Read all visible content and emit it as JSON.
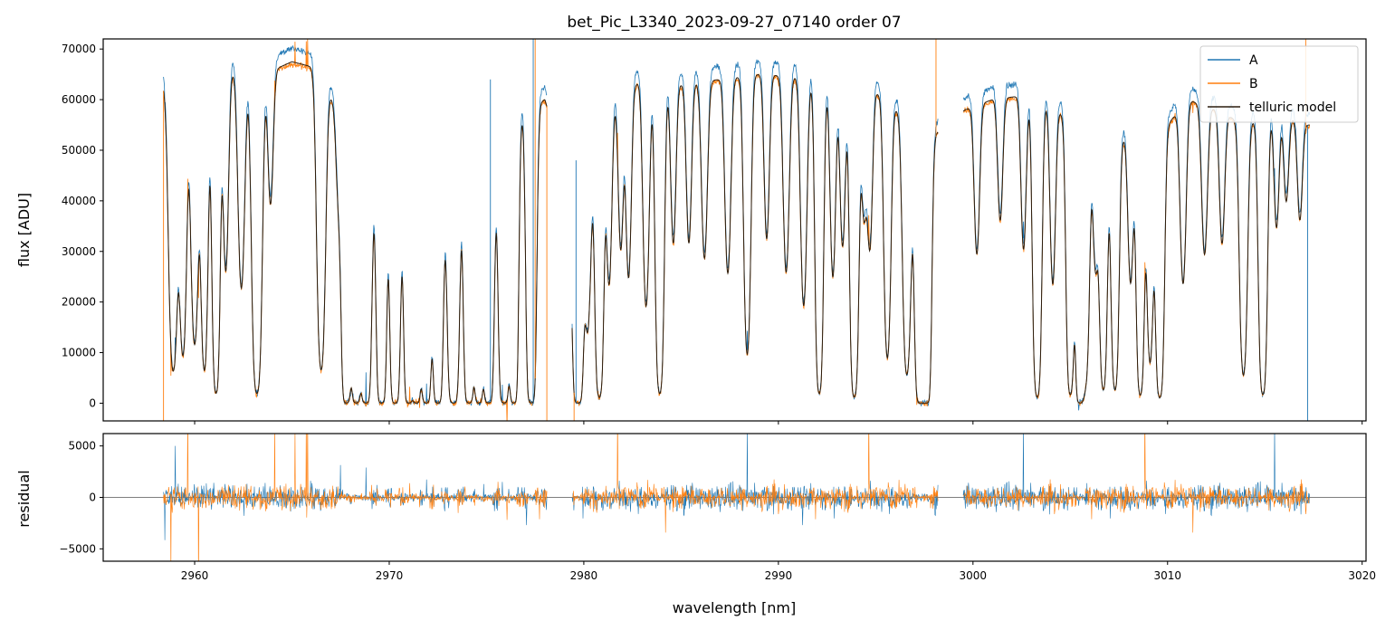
{
  "chart_data": {
    "type": "line",
    "title": "bet_Pic_L3340_2023-09-27_07140  order 07",
    "colors": {
      "A": "#1f77b4",
      "B": "#ff7f0e",
      "model": "#2b1d0e",
      "zero_line": "#555555"
    },
    "legend": {
      "position": "top-right",
      "entries": [
        {
          "key": "A",
          "label": "A"
        },
        {
          "key": "B",
          "label": "B"
        },
        {
          "key": "model",
          "label": "telluric model"
        }
      ]
    },
    "xlabel": "wavelength [nm]",
    "xlim": [
      2955.3,
      3020.2
    ],
    "xticks": [
      2960,
      2970,
      2980,
      2990,
      3000,
      3010,
      3020
    ],
    "panels": [
      {
        "name": "flux",
        "ylabel": "flux [ADU]",
        "ylim": [
          -3500,
          72000
        ],
        "yticks": [
          0,
          10000,
          20000,
          30000,
          40000,
          50000,
          60000,
          70000
        ],
        "segments": [
          [
            2958.4,
            2978.1
          ],
          [
            2979.4,
            2998.2
          ],
          [
            2999.5,
            3017.3
          ]
        ],
        "continuum": [
          [
            2958.5,
            63000
          ],
          [
            2960,
            64500
          ],
          [
            2962,
            65500
          ],
          [
            2963,
            64000
          ],
          [
            2965,
            67500
          ],
          [
            2966.5,
            66000
          ],
          [
            2968,
            50000
          ],
          [
            2970,
            45000
          ],
          [
            2972,
            33000
          ],
          [
            2973.5,
            50000
          ],
          [
            2975,
            52000
          ],
          [
            2976,
            55000
          ],
          [
            2977,
            58000
          ],
          [
            2978,
            60000
          ],
          [
            2979.5,
            40000
          ],
          [
            2981,
            58000
          ],
          [
            2983,
            64000
          ],
          [
            2985,
            63000
          ],
          [
            2987,
            64000
          ],
          [
            2989,
            65000
          ],
          [
            2991,
            64500
          ],
          [
            2993,
            62000
          ],
          [
            2995,
            61500
          ],
          [
            2997,
            55000
          ],
          [
            2998,
            53000
          ],
          [
            2999.6,
            58000
          ],
          [
            3001,
            60000
          ],
          [
            3003,
            61000
          ],
          [
            3004,
            59000
          ],
          [
            3005.5,
            54000
          ],
          [
            3007,
            52000
          ],
          [
            3008.5,
            53000
          ],
          [
            3010,
            55000
          ],
          [
            3011,
            60000
          ],
          [
            3012.5,
            58000
          ],
          [
            3014,
            55000
          ],
          [
            3015.5,
            58000
          ],
          [
            3017.2,
            55000
          ]
        ],
        "absorption_lines": [
          [
            2958.9,
            2500,
            0.9
          ],
          [
            2959.4,
            2000,
            0.85
          ],
          [
            2960.0,
            2200,
            0.82
          ],
          [
            2960.5,
            1800,
            0.9
          ],
          [
            2961.1,
            1800,
            0.97
          ],
          [
            2961.6,
            1500,
            0.6
          ],
          [
            2962.4,
            2000,
            0.65
          ],
          [
            2963.2,
            2500,
            0.97
          ],
          [
            2963.9,
            1600,
            0.4
          ],
          [
            2966.5,
            2300,
            0.9
          ],
          [
            2967.4,
            1500,
            0.3
          ],
          [
            2967.8,
            2000,
            1.0
          ],
          [
            2968.3,
            2000,
            1.0
          ],
          [
            2968.8,
            2300,
            1.0
          ],
          [
            2969.6,
            2000,
            1.0
          ],
          [
            2970.3,
            2000,
            1.0
          ],
          [
            2971.0,
            1800,
            1.0
          ],
          [
            2971.4,
            1800,
            1.0
          ],
          [
            2971.9,
            2000,
            1.0
          ],
          [
            2972.5,
            2000,
            1.0
          ],
          [
            2973.3,
            2500,
            1.0
          ],
          [
            2974.1,
            2200,
            1.0
          ],
          [
            2974.6,
            1800,
            1.0
          ],
          [
            2975.1,
            2300,
            1.0
          ],
          [
            2975.9,
            2300,
            1.0
          ],
          [
            2976.4,
            1700,
            1.0
          ],
          [
            2977.3,
            2000,
            1.0
          ],
          [
            2979.7,
            2300,
            1.0
          ],
          [
            2980.2,
            1800,
            0.7
          ],
          [
            2980.8,
            2000,
            0.98
          ],
          [
            2981.3,
            1500,
            0.6
          ],
          [
            2981.9,
            1400,
            0.5
          ],
          [
            2982.3,
            1500,
            0.6
          ],
          [
            2983.2,
            1800,
            0.7
          ],
          [
            2983.9,
            2000,
            0.97
          ],
          [
            2984.6,
            1500,
            0.5
          ],
          [
            2985.4,
            1500,
            0.5
          ],
          [
            2986.2,
            1800,
            0.55
          ],
          [
            2987.4,
            1800,
            0.6
          ],
          [
            2988.4,
            1800,
            0.85
          ],
          [
            2989.4,
            1500,
            0.5
          ],
          [
            2990.4,
            1800,
            0.6
          ],
          [
            2991.3,
            1800,
            0.7
          ],
          [
            2992.1,
            1800,
            0.97
          ],
          [
            2992.8,
            1500,
            0.6
          ],
          [
            2993.3,
            1500,
            0.5
          ],
          [
            2993.9,
            2000,
            0.98
          ],
          [
            2994.4,
            1500,
            0.4
          ],
          [
            2994.7,
            1500,
            0.5
          ],
          [
            2995.6,
            1800,
            0.85
          ],
          [
            2996.6,
            2200,
            0.9
          ],
          [
            2997.3,
            2500,
            1.0
          ],
          [
            2997.6,
            2000,
            1.0
          ],
          [
            3000.2,
            1600,
            0.5
          ],
          [
            3001.4,
            1500,
            0.4
          ],
          [
            3002.6,
            1500,
            0.5
          ],
          [
            3003.3,
            2000,
            0.98
          ],
          [
            3004.1,
            1500,
            0.6
          ],
          [
            3005.0,
            1800,
            0.97
          ],
          [
            3005.5,
            1800,
            1.0
          ],
          [
            3005.8,
            1800,
            0.9
          ],
          [
            3006.3,
            1500,
            0.5
          ],
          [
            3006.7,
            1800,
            0.95
          ],
          [
            3007.3,
            1800,
            0.95
          ],
          [
            3008.1,
            1500,
            0.55
          ],
          [
            3008.6,
            1800,
            0.97
          ],
          [
            3009.1,
            1600,
            0.85
          ],
          [
            3009.6,
            2000,
            0.98
          ],
          [
            3010.8,
            1800,
            0.6
          ],
          [
            3011.9,
            1800,
            0.5
          ],
          [
            3012.8,
            1600,
            0.45
          ],
          [
            3013.9,
            2000,
            0.9
          ],
          [
            3014.9,
            2000,
            0.97
          ],
          [
            3015.6,
            1500,
            0.4
          ],
          [
            3016.1,
            1500,
            0.3
          ],
          [
            3016.8,
            1500,
            0.35
          ]
        ],
        "spikes": [
          {
            "series": "A",
            "x": 2975.2,
            "y": 64000
          },
          {
            "series": "A",
            "x": 2977.4,
            "y": 72000
          },
          {
            "series": "A",
            "x": 2979.6,
            "y": 48000
          },
          {
            "series": "B",
            "x": 2977.5,
            "y": 72000
          },
          {
            "series": "B",
            "x": 2998.1,
            "y": 72000
          },
          {
            "series": "B",
            "x": 3017.1,
            "y": 72000
          },
          {
            "series": "A",
            "x": 3017.2,
            "y": -3500
          },
          {
            "series": "B",
            "x": 2958.4,
            "y": -3500
          },
          {
            "series": "B",
            "x": 2978.1,
            "y": -3500
          },
          {
            "series": "B",
            "x": 2979.5,
            "y": -3500
          }
        ]
      },
      {
        "name": "residual",
        "ylabel": "residual",
        "ylim": [
          -6200,
          6200
        ],
        "yticks": [
          -5000,
          0,
          5000
        ],
        "zero_line": 0,
        "noise_level": 350
      }
    ]
  }
}
